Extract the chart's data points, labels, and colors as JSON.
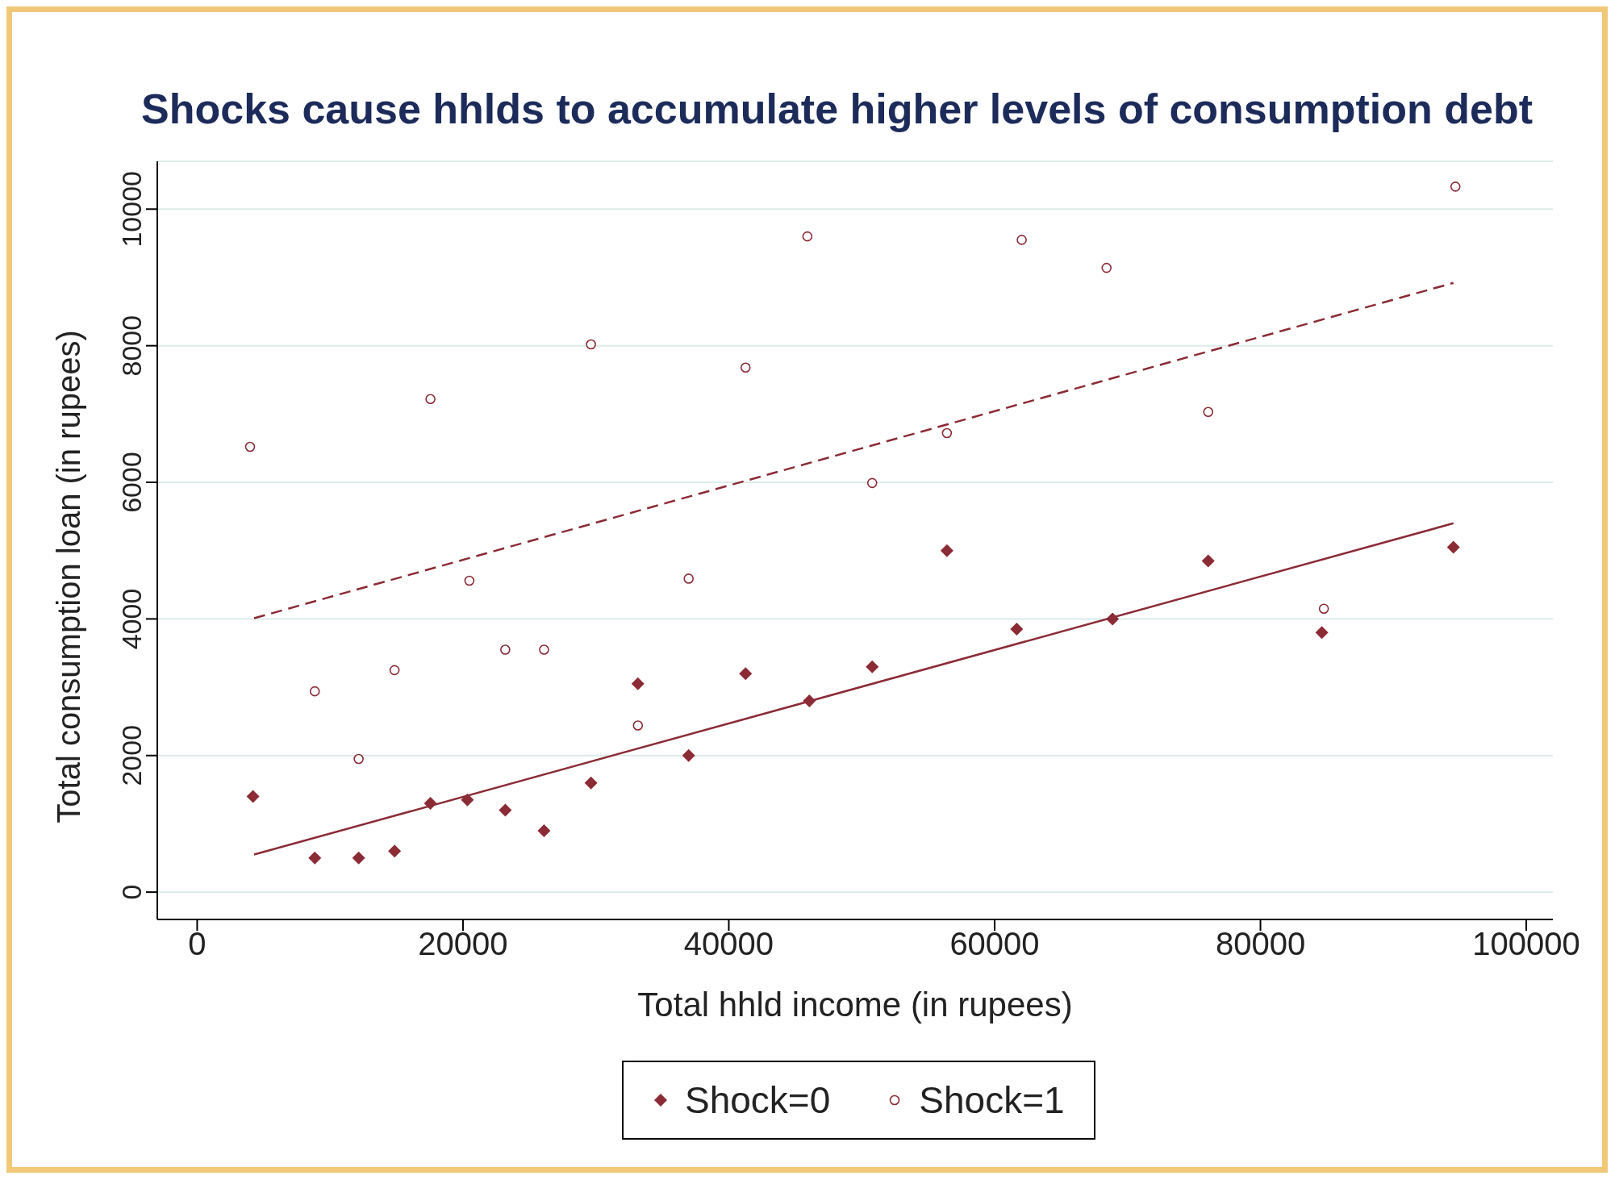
{
  "chart_data": {
    "type": "scatter",
    "title": "Shocks cause hhlds to accumulate higher levels of consumption debt",
    "xlabel": "Total hhld income (in rupees)",
    "ylabel": "Total consumption loan (in rupees)",
    "xlim": [
      -3000,
      102000
    ],
    "xticks": [
      0,
      20000,
      40000,
      60000,
      80000,
      100000
    ],
    "ylim": [
      -400,
      10700
    ],
    "yticks": [
      0,
      2000,
      4000,
      6000,
      8000,
      10000
    ],
    "grid": "y",
    "legend": "bottom",
    "series": [
      {
        "name": "Shock=0",
        "color": "#8b2b36",
        "marker": "diamond",
        "x": [
          4200,
          8850,
          12150,
          14850,
          17550,
          20330,
          23180,
          26100,
          29630,
          33160,
          36980,
          41260,
          46060,
          50790,
          56410,
          61660,
          68870,
          76070,
          84620,
          94520
        ],
        "values": [
          1400,
          500,
          500,
          600,
          1300,
          1350,
          1200,
          900,
          1600,
          3050,
          2000,
          3200,
          2800,
          3300,
          5000,
          3850,
          4000,
          4850,
          3800,
          5050
        ]
      },
      {
        "name": "Shock=1",
        "color": "#8b2b36",
        "marker": "circle",
        "x": [
          3980,
          8850,
          12150,
          14850,
          17550,
          20480,
          23180,
          26100,
          29630,
          33160,
          36980,
          41260,
          45910,
          50790,
          56410,
          62040,
          68420,
          76070,
          84770,
          94670
        ],
        "values": [
          6520,
          2940,
          1950,
          3250,
          7220,
          4560,
          3550,
          3550,
          8020,
          2440,
          4590,
          7680,
          9600,
          5990,
          6720,
          9550,
          9140,
          7030,
          4150,
          10330
        ]
      },
      {
        "type": "line",
        "color": "#8b2b36",
        "line_style": "solid",
        "marker": "none",
        "x": [
          4280,
          94520
        ],
        "values": [
          550,
          5400
        ]
      },
      {
        "type": "line",
        "color": "#8b2b36",
        "line_style": "dashed",
        "marker": "none",
        "x": [
          4280,
          94520
        ],
        "values": [
          4010,
          8920
        ]
      }
    ]
  }
}
